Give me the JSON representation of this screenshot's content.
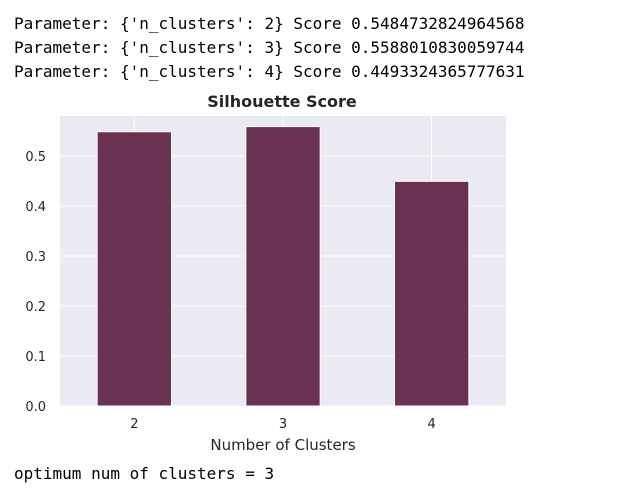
{
  "output": {
    "lines": [
      "Parameter: {'n_clusters': 2} Score 0.5484732824964568",
      "Parameter: {'n_clusters': 3} Score 0.5588010830059744",
      "Parameter: {'n_clusters': 4} Score 0.4493324365777631"
    ],
    "footer": "optimum num of clusters = 3"
  },
  "chart_data": {
    "type": "bar",
    "title": "Silhouette Score",
    "xlabel": "Number of Clusters",
    "ylabel": "",
    "categories": [
      "2",
      "3",
      "4"
    ],
    "values": [
      0.5484732824964568,
      0.5588010830059744,
      0.4493324365777631
    ],
    "ylim": [
      0,
      0.58
    ],
    "yticks": [
      0.0,
      0.1,
      0.2,
      0.3,
      0.4,
      0.5
    ],
    "ytick_labels": [
      "0.0",
      "0.1",
      "0.2",
      "0.3",
      "0.4",
      "0.5"
    ],
    "grid": true,
    "bar_color": "#6a3152",
    "plot_background": "#eaeaf2",
    "grid_color": "#ffffff"
  }
}
